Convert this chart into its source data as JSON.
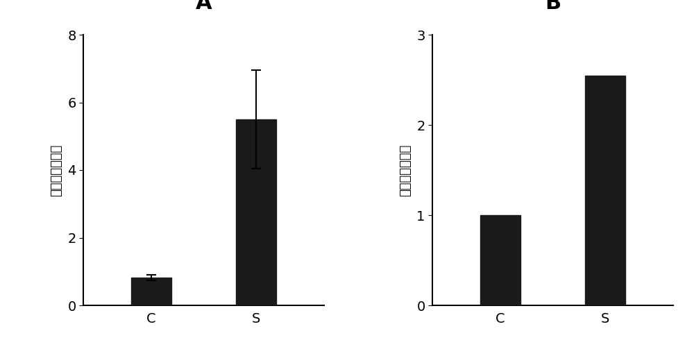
{
  "panel_A": {
    "label": "A",
    "categories": [
      "C",
      "S"
    ],
    "values": [
      0.82,
      5.5
    ],
    "errors": [
      0.08,
      1.45
    ],
    "bar_color": "#1a1a1a",
    "ylim": [
      0,
      8
    ],
    "yticks": [
      0,
      2,
      4,
      6,
      8
    ],
    "ylabel": "基因相对表达量"
  },
  "panel_B": {
    "label": "B",
    "categories": [
      "C",
      "S"
    ],
    "values": [
      1.0,
      2.55
    ],
    "errors": [
      0,
      0
    ],
    "bar_color": "#1a1a1a",
    "ylim": [
      0,
      3
    ],
    "yticks": [
      0,
      1,
      2,
      3
    ],
    "ylabel": "基因相对表达量"
  },
  "figure_width": 10.0,
  "figure_height": 5.0,
  "background_color": "#ffffff",
  "bar_width": 0.38,
  "label_fontsize": 22,
  "tick_fontsize": 14,
  "ylabel_fontsize": 13
}
